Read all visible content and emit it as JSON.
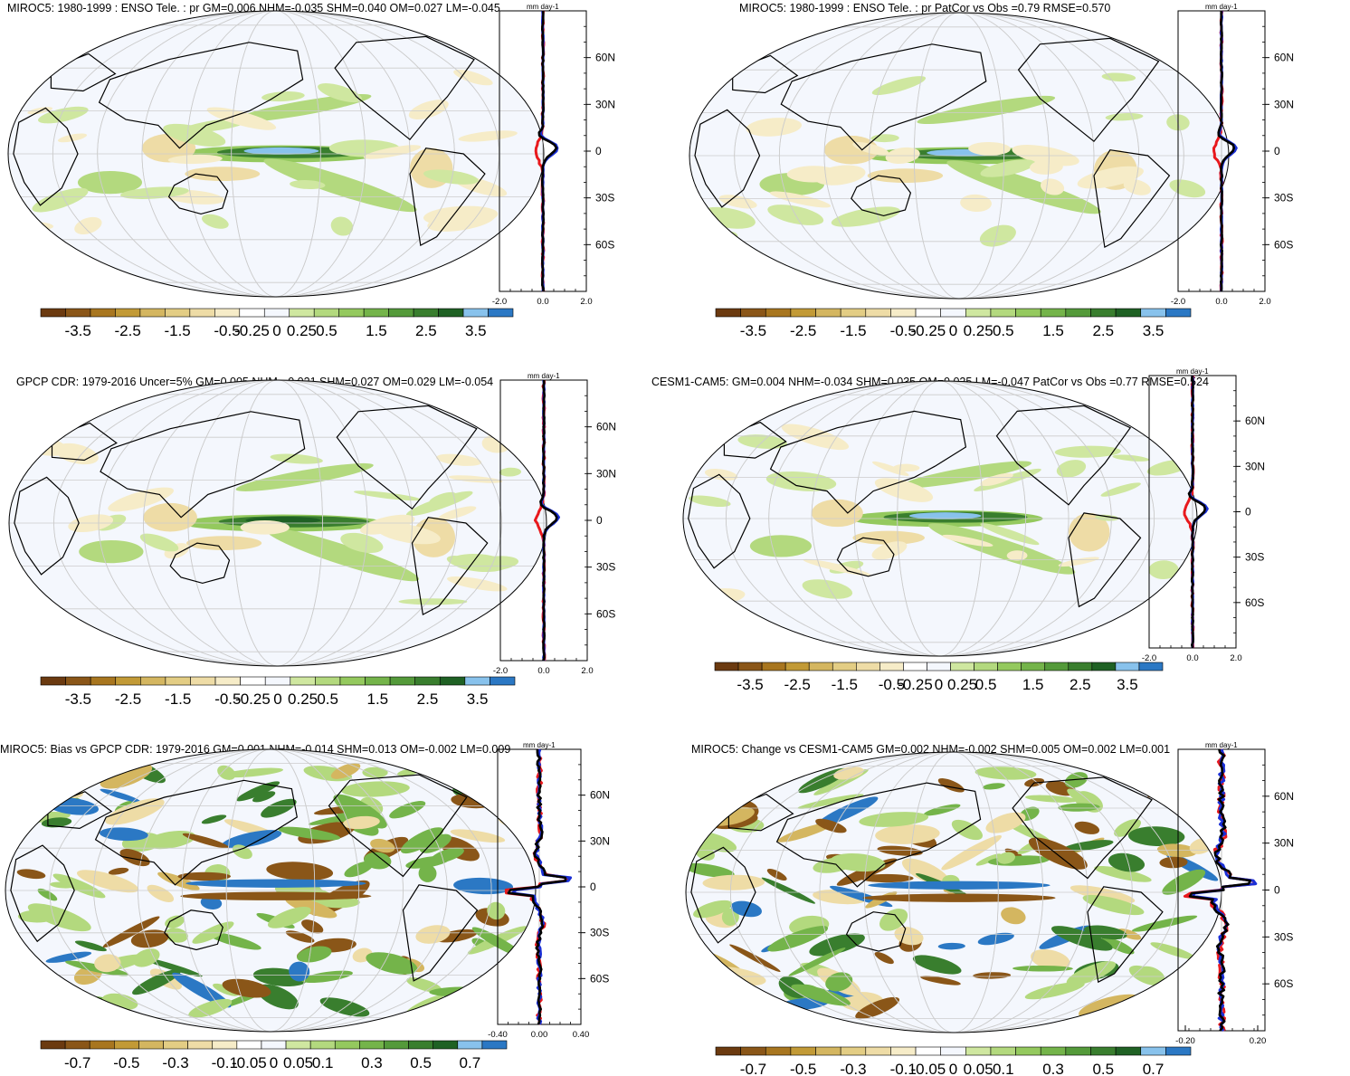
{
  "colors": {
    "brown_to_blue": [
      "#6b3a10",
      "#8a5618",
      "#a8761f",
      "#c29a36",
      "#d4b660",
      "#e3cd84",
      "#eedca6",
      "#f6ecc8",
      "#ffffff",
      "#f4f7fd",
      "#cfe7a0",
      "#b3d97e",
      "#94c95e",
      "#74b44a",
      "#549a3a",
      "#397e2e",
      "#1f6124",
      "#88c2ec",
      "#2b78c4"
    ],
    "line_model": "#000000",
    "line_obs": "#e8191d",
    "line_ref": "#1a2fd6",
    "ocean_bg": "#f4f7fd",
    "coast": "#000000",
    "graticule": "#cccccc"
  },
  "colorbars": [
    {
      "labels": [
        "-3.5",
        "-2.5",
        "-1.5",
        "-0.5",
        "-0.25",
        "0",
        "0.25",
        "0.5",
        "1.5",
        "2.5",
        "3.5"
      ]
    },
    {
      "labels": [
        "-3.5",
        "-2.5",
        "-1.5",
        "-0.5",
        "-0.25",
        "0",
        "0.25",
        "0.5",
        "1.5",
        "2.5",
        "3.5"
      ]
    },
    {
      "labels": [
        "-3.5",
        "-2.5",
        "-1.5",
        "-0.5",
        "-0.25",
        "0",
        "0.25",
        "0.5",
        "1.5",
        "2.5",
        "3.5"
      ]
    },
    {
      "labels": [
        "-3.5",
        "-2.5",
        "-1.5",
        "-0.5",
        "-0.25",
        "0",
        "0.25",
        "0.5",
        "1.5",
        "2.5",
        "3.5"
      ]
    },
    {
      "labels": [
        "-0.7",
        "-0.5",
        "-0.3",
        "-0.1",
        "-0.05",
        "0",
        "0.05",
        "0.1",
        "0.3",
        "0.5",
        "0.7"
      ]
    },
    {
      "labels": [
        "-0.7",
        "-0.5",
        "-0.3",
        "-0.1",
        "-0.05",
        "0",
        "0.05",
        "0.1",
        "0.3",
        "0.5",
        "0.7"
      ]
    }
  ],
  "chart_data": [
    {
      "type": "heatmap",
      "title": "MIROC5: 1980-1999 : ENSO Tele. : pr GM=0.006 NHM=-0.035 SHM=0.040 OM=0.027 LM=-0.045",
      "colorbar_labels": [
        "-3.5",
        "-2.5",
        "-1.5",
        "-0.5",
        "-0.25",
        "0",
        "0.25",
        "0.5",
        "1.5",
        "2.5",
        "3.5"
      ],
      "zonal_profile": {
        "unit": "mm day-1",
        "xlim": [
          -2.0,
          2.0
        ],
        "xticks": [
          "-2.0",
          "0.0",
          "2.0"
        ],
        "yticks": [
          "60N",
          "30N",
          "0",
          "30S",
          "60S"
        ]
      }
    },
    {
      "type": "heatmap",
      "title": "MIROC5: 1980-1999 : ENSO Tele. : pr PatCor vs Obs =0.79 RMSE=0.570",
      "colorbar_labels": [
        "-3.5",
        "-2.5",
        "-1.5",
        "-0.5",
        "-0.25",
        "0",
        "0.25",
        "0.5",
        "1.5",
        "2.5",
        "3.5"
      ],
      "zonal_profile": {
        "unit": "mm day-1",
        "xlim": [
          -2.0,
          2.0
        ],
        "xticks": [
          "-2.0",
          "0.0",
          "2.0"
        ],
        "yticks": [
          "60N",
          "30N",
          "0",
          "30S",
          "60S"
        ]
      }
    },
    {
      "type": "heatmap",
      "title": "GPCP CDR: 1979-2016 Uncer=5% GM=0.005 NHM=-0.021 SHM=0.027 OM=0.029 LM=-0.054",
      "colorbar_labels": [
        "-3.5",
        "-2.5",
        "-1.5",
        "-0.5",
        "-0.25",
        "0",
        "0.25",
        "0.5",
        "1.5",
        "2.5",
        "3.5"
      ],
      "zonal_profile": {
        "unit": "mm day-1",
        "xlim": [
          -2.0,
          2.0
        ],
        "xticks": [
          "-2.0",
          "0.0",
          "2.0"
        ],
        "yticks": [
          "60N",
          "30N",
          "0",
          "30S",
          "60S"
        ]
      }
    },
    {
      "type": "heatmap",
      "title": "CESM1-CAM5: GM=0.004 NHM=-0.034 SHM=0.035 OM=0.025 LM=-0.047 PatCor vs Obs =0.77 RMSE=0.524",
      "colorbar_labels": [
        "-3.5",
        "-2.5",
        "-1.5",
        "-0.5",
        "-0.25",
        "0",
        "0.25",
        "0.5",
        "1.5",
        "2.5",
        "3.5"
      ],
      "zonal_profile": {
        "unit": "mm day-1",
        "xlim": [
          -2.0,
          2.0
        ],
        "xticks": [
          "-2.0",
          "0.0",
          "2.0"
        ],
        "yticks": [
          "60N",
          "30N",
          "0",
          "30S",
          "60S"
        ]
      }
    },
    {
      "type": "heatmap",
      "title": "MIROC5: Bias vs GPCP CDR: 1979-2016 GM=0.001 NHM=-0.014 SHM=0.013 OM=-0.002 LM=0.009",
      "colorbar_labels": [
        "-0.7",
        "-0.5",
        "-0.3",
        "-0.1",
        "-0.05",
        "0",
        "0.05",
        "0.1",
        "0.3",
        "0.5",
        "0.7"
      ],
      "zonal_profile": {
        "unit": "mm day-1",
        "xlim": [
          -0.4,
          0.4
        ],
        "xticks": [
          "-0.40",
          "0.00",
          "0.40"
        ],
        "yticks": [
          "60N",
          "30N",
          "0",
          "30S",
          "60S"
        ]
      }
    },
    {
      "type": "heatmap",
      "title": "MIROC5: Change vs CESM1-CAM5 GM=0.002 NHM=-0.002 SHM=0.005 OM=0.002 LM=0.001",
      "colorbar_labels": [
        "-0.7",
        "-0.5",
        "-0.3",
        "-0.1",
        "-0.05",
        "0",
        "0.05",
        "0.1",
        "0.3",
        "0.5",
        "0.7"
      ],
      "zonal_profile": {
        "unit": "mm day-1",
        "xlim": [
          -0.2,
          0.2
        ],
        "xticks": [
          "-0.20",
          "0.20"
        ],
        "yticks": [
          "60N",
          "30N",
          "0",
          "30S",
          "60S"
        ]
      }
    }
  ]
}
